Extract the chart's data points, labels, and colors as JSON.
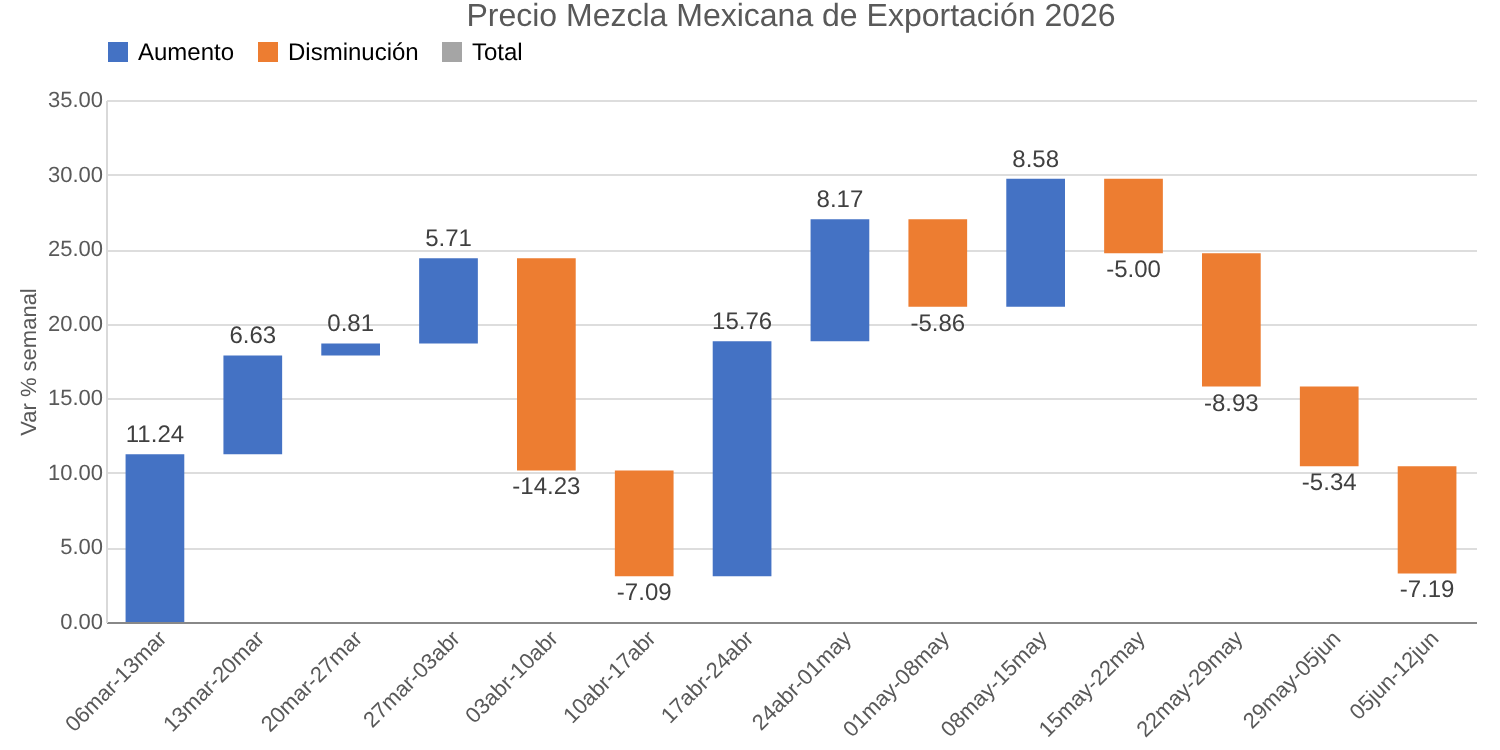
{
  "chart_data": {
    "type": "bar",
    "title": "Precio Mezcla Mexicana de Exportación 2026",
    "ylabel": "Var % semanal",
    "categories": [
      "06mar-13mar",
      "13mar-20mar",
      "20mar-27mar",
      "27mar-03abr",
      "03abr-10abr",
      "10abr-17abr",
      "17abr-24abr",
      "24abr-01may",
      "01may-08may",
      "08may-15may",
      "15may-22may",
      "22may-29may",
      "29may-05jun",
      "05jun-12jun"
    ],
    "series": [
      {
        "name": "Aumento",
        "color": "#4472c4",
        "values": [
          11.24,
          6.63,
          0.81,
          5.71,
          null,
          null,
          15.76,
          8.17,
          null,
          8.58,
          null,
          null,
          null,
          null
        ],
        "base": [
          0,
          11.24,
          17.87,
          18.68,
          null,
          null,
          3.07,
          18.83,
          null,
          21.14,
          null,
          null,
          null,
          null
        ],
        "value_labels": [
          "11.24",
          "6.63",
          "0.81",
          "5.71",
          null,
          null,
          "15.76",
          "8.17",
          null,
          "8.58",
          null,
          null,
          null,
          null
        ]
      },
      {
        "name": "Disminución",
        "color": "#ed7d31",
        "values": [
          null,
          null,
          null,
          null,
          -14.23,
          -7.09,
          null,
          null,
          -5.86,
          null,
          -5.0,
          -8.93,
          -5.34,
          -7.19
        ],
        "base": [
          null,
          null,
          null,
          null,
          24.39,
          10.16,
          null,
          null,
          27.0,
          null,
          29.72,
          24.72,
          15.79,
          10.45
        ],
        "value_labels": [
          null,
          null,
          null,
          null,
          "-14.23",
          "-7.09",
          null,
          null,
          "-5.86",
          null,
          "-5.00",
          "-8.93",
          "-5.34",
          "-7.19"
        ]
      },
      {
        "name": "Total",
        "color": "#a5a5a5",
        "values": [
          null,
          null,
          null,
          null,
          null,
          null,
          null,
          null,
          null,
          null,
          null,
          null,
          null,
          null
        ]
      }
    ],
    "ylim": [
      0,
      35
    ],
    "yticks": [
      {
        "value": 0,
        "label": "0.00"
      },
      {
        "value": 5,
        "label": "5.00"
      },
      {
        "value": 10,
        "label": "10.00"
      },
      {
        "value": 15,
        "label": "15.00"
      },
      {
        "value": 20,
        "label": "20.00"
      },
      {
        "value": 25,
        "label": "25.00"
      },
      {
        "value": 30,
        "label": "30.00"
      },
      {
        "value": 35,
        "label": "35.00"
      }
    ],
    "grid": "y",
    "legend": "top"
  }
}
